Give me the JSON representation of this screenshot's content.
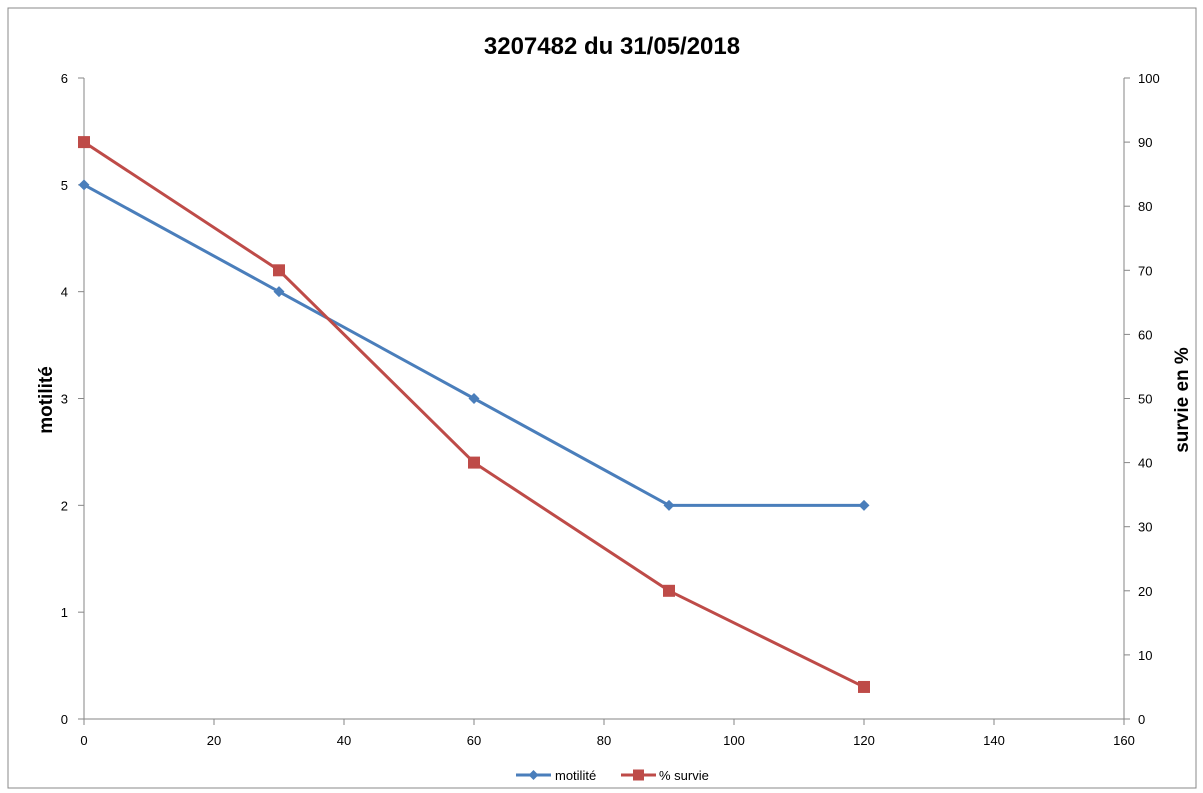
{
  "chart_data": {
    "type": "line",
    "title": "3207482 du 31/05/2018",
    "ylabel": "motilité",
    "y2label": "survie en %",
    "xlabel": "",
    "xlim": [
      0,
      160
    ],
    "ylim": [
      0,
      6
    ],
    "y2lim": [
      0,
      100
    ],
    "x_ticks": [
      "0",
      "20",
      "40",
      "60",
      "80",
      "100",
      "120",
      "140",
      "160"
    ],
    "y_ticks": [
      "0",
      "1",
      "2",
      "3",
      "4",
      "5",
      "6"
    ],
    "y2_ticks": [
      "0",
      "10",
      "20",
      "30",
      "40",
      "50",
      "60",
      "70",
      "80",
      "90",
      "100"
    ],
    "grid": false,
    "legend_position": "bottom",
    "series": [
      {
        "name": "motilité",
        "axis": "left",
        "color": "#4A7EBB",
        "marker": "diamond",
        "x": [
          0,
          30,
          60,
          90,
          120
        ],
        "values": [
          5,
          4,
          3,
          2,
          2
        ]
      },
      {
        "name": "% survie",
        "axis": "right",
        "color": "#BE4B48",
        "marker": "square",
        "x": [
          0,
          30,
          60,
          90,
          120
        ],
        "values": [
          90,
          70,
          40,
          20,
          5
        ]
      }
    ]
  }
}
